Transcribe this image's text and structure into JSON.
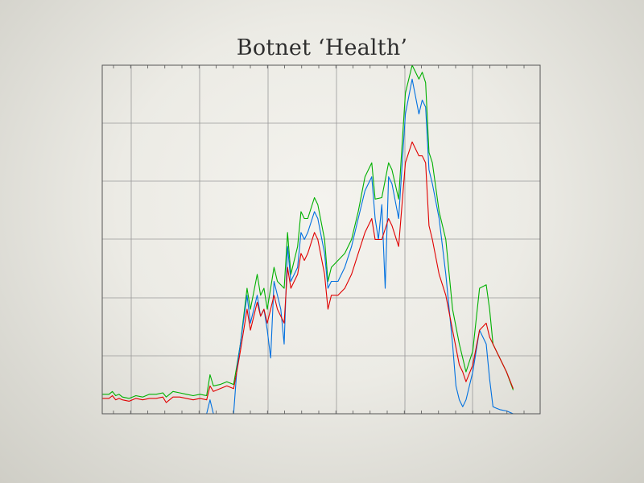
{
  "page": {
    "background": "#ecebe5"
  },
  "chart_data": {
    "type": "line",
    "title": "Botnet ‘Health’",
    "xlabel": "",
    "ylabel": "",
    "xlim": [
      0,
      130
    ],
    "ylim": [
      0,
      100
    ],
    "grid": true,
    "axis_color": "#555555",
    "grid_color": "#999999",
    "series": [
      {
        "color": "#00b000",
        "points": [
          [
            0,
            5.6
          ],
          [
            2,
            5.6
          ],
          [
            3,
            6.4
          ],
          [
            4,
            5.2
          ],
          [
            5,
            5.6
          ],
          [
            6,
            4.8
          ],
          [
            8,
            4.4
          ],
          [
            10,
            5.2
          ],
          [
            12,
            4.8
          ],
          [
            14,
            5.6
          ],
          [
            16,
            5.6
          ],
          [
            18,
            6
          ],
          [
            19,
            4.8
          ],
          [
            21,
            6.4
          ],
          [
            23,
            6
          ],
          [
            25,
            5.6
          ],
          [
            27,
            5.2
          ],
          [
            29,
            5.6
          ],
          [
            31,
            5.2
          ],
          [
            32,
            11.2
          ],
          [
            33,
            8
          ],
          [
            35,
            8.4
          ],
          [
            37,
            9.2
          ],
          [
            39,
            8.4
          ],
          [
            40,
            14
          ],
          [
            41,
            20
          ],
          [
            43,
            36
          ],
          [
            44,
            30
          ],
          [
            46,
            40
          ],
          [
            47,
            34
          ],
          [
            48,
            36
          ],
          [
            49,
            30
          ],
          [
            51,
            42
          ],
          [
            52,
            38
          ],
          [
            54,
            36
          ],
          [
            55,
            52
          ],
          [
            56,
            40
          ],
          [
            58,
            48
          ],
          [
            59,
            58
          ],
          [
            60,
            56
          ],
          [
            61,
            56
          ],
          [
            63,
            62
          ],
          [
            64,
            60
          ],
          [
            66,
            50
          ],
          [
            67,
            38
          ],
          [
            68,
            42
          ],
          [
            70,
            44
          ],
          [
            72,
            46
          ],
          [
            74,
            50
          ],
          [
            76,
            58
          ],
          [
            78,
            68
          ],
          [
            80,
            72
          ],
          [
            81,
            61.6
          ],
          [
            83,
            62
          ],
          [
            85,
            72
          ],
          [
            86,
            70
          ],
          [
            88,
            61.6
          ],
          [
            90,
            92
          ],
          [
            92,
            100
          ],
          [
            94,
            96
          ],
          [
            95,
            98
          ],
          [
            96,
            95
          ],
          [
            97,
            75
          ],
          [
            98,
            72
          ],
          [
            100,
            58
          ],
          [
            102,
            50
          ],
          [
            104,
            30
          ],
          [
            106,
            20
          ],
          [
            107,
            16
          ],
          [
            108,
            12
          ],
          [
            110,
            18
          ],
          [
            112,
            36
          ],
          [
            114,
            37
          ],
          [
            115,
            30
          ],
          [
            116,
            20
          ],
          [
            117,
            18
          ],
          [
            118,
            16
          ],
          [
            119,
            14
          ],
          [
            120,
            12
          ],
          [
            122,
            6.8
          ]
        ]
      },
      {
        "color": "#0070e0",
        "points": [
          [
            31,
            0
          ],
          [
            32,
            4
          ],
          [
            33,
            0
          ],
          [
            39,
            0
          ],
          [
            40,
            13.2
          ],
          [
            41,
            20
          ],
          [
            43,
            34
          ],
          [
            44,
            26
          ],
          [
            46,
            34
          ],
          [
            47,
            28
          ],
          [
            48,
            30
          ],
          [
            49,
            24
          ],
          [
            50,
            16
          ],
          [
            51,
            38
          ],
          [
            52,
            34
          ],
          [
            53,
            30
          ],
          [
            54,
            20
          ],
          [
            55,
            48
          ],
          [
            56,
            38
          ],
          [
            58,
            42
          ],
          [
            59,
            52
          ],
          [
            60,
            50
          ],
          [
            61,
            52
          ],
          [
            63,
            58
          ],
          [
            64,
            56
          ],
          [
            66,
            46
          ],
          [
            67,
            36
          ],
          [
            68,
            38
          ],
          [
            70,
            38
          ],
          [
            72,
            42
          ],
          [
            74,
            48
          ],
          [
            76,
            56
          ],
          [
            78,
            64
          ],
          [
            80,
            68
          ],
          [
            81,
            56
          ],
          [
            82,
            50
          ],
          [
            83,
            60
          ],
          [
            84,
            36
          ],
          [
            85,
            68
          ],
          [
            86,
            66
          ],
          [
            88,
            56
          ],
          [
            90,
            86
          ],
          [
            92,
            96
          ],
          [
            94,
            86
          ],
          [
            95,
            90
          ],
          [
            96,
            88
          ],
          [
            97,
            70
          ],
          [
            98,
            66
          ],
          [
            100,
            56
          ],
          [
            102,
            40
          ],
          [
            104,
            20
          ],
          [
            105,
            8
          ],
          [
            106,
            4
          ],
          [
            107,
            2
          ],
          [
            108,
            4
          ],
          [
            110,
            12
          ],
          [
            111,
            18
          ],
          [
            112,
            24
          ],
          [
            114,
            20
          ],
          [
            115,
            10
          ],
          [
            116,
            2
          ],
          [
            117,
            1.6
          ],
          [
            118,
            1.2
          ],
          [
            119,
            1
          ],
          [
            120,
            0.8
          ],
          [
            122,
            0
          ]
        ]
      },
      {
        "color": "#e00000",
        "points": [
          [
            0,
            4.4
          ],
          [
            2,
            4.4
          ],
          [
            3,
            5.2
          ],
          [
            4,
            4
          ],
          [
            5,
            4.4
          ],
          [
            6,
            4
          ],
          [
            8,
            3.6
          ],
          [
            10,
            4.4
          ],
          [
            12,
            4
          ],
          [
            14,
            4.4
          ],
          [
            16,
            4.4
          ],
          [
            18,
            4.8
          ],
          [
            19,
            3.2
          ],
          [
            21,
            4.8
          ],
          [
            23,
            4.8
          ],
          [
            25,
            4.4
          ],
          [
            27,
            4
          ],
          [
            29,
            4.4
          ],
          [
            31,
            4
          ],
          [
            32,
            8
          ],
          [
            33,
            6.4
          ],
          [
            35,
            7.2
          ],
          [
            37,
            8
          ],
          [
            39,
            7.2
          ],
          [
            40,
            12.4
          ],
          [
            41,
            18
          ],
          [
            43,
            30
          ],
          [
            44,
            24
          ],
          [
            46,
            32
          ],
          [
            47,
            28
          ],
          [
            48,
            30
          ],
          [
            49,
            26
          ],
          [
            51,
            34
          ],
          [
            52,
            30
          ],
          [
            54,
            26
          ],
          [
            55,
            42
          ],
          [
            56,
            36
          ],
          [
            58,
            40
          ],
          [
            59,
            46
          ],
          [
            60,
            44
          ],
          [
            61,
            46
          ],
          [
            63,
            52
          ],
          [
            64,
            50
          ],
          [
            66,
            40
          ],
          [
            67,
            30
          ],
          [
            68,
            34
          ],
          [
            70,
            34
          ],
          [
            72,
            36
          ],
          [
            74,
            40
          ],
          [
            76,
            46
          ],
          [
            78,
            52
          ],
          [
            80,
            56
          ],
          [
            81,
            50
          ],
          [
            83,
            50
          ],
          [
            85,
            56
          ],
          [
            86,
            54
          ],
          [
            88,
            48
          ],
          [
            90,
            72
          ],
          [
            92,
            78
          ],
          [
            94,
            74
          ],
          [
            95,
            74
          ],
          [
            96,
            72
          ],
          [
            97,
            54
          ],
          [
            98,
            50
          ],
          [
            100,
            40
          ],
          [
            102,
            34
          ],
          [
            104,
            24
          ],
          [
            106,
            14
          ],
          [
            107,
            12
          ],
          [
            108,
            9.2
          ],
          [
            110,
            14
          ],
          [
            112,
            24
          ],
          [
            114,
            26
          ],
          [
            115,
            22
          ],
          [
            116,
            20
          ],
          [
            117,
            18
          ],
          [
            118,
            16
          ],
          [
            119,
            14
          ],
          [
            120,
            12
          ],
          [
            122,
            7.2
          ]
        ]
      }
    ]
  }
}
